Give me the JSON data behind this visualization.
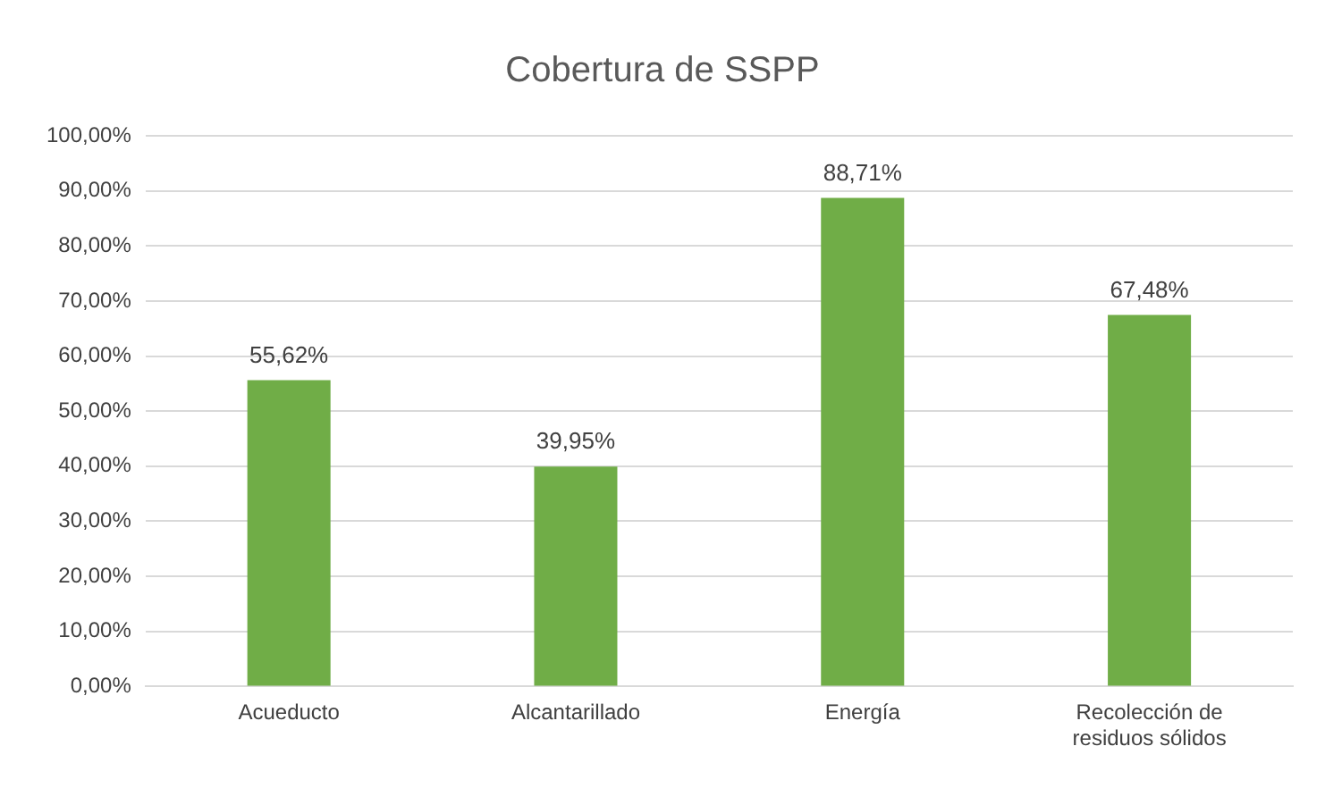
{
  "chart_data": {
    "type": "bar",
    "title": "Cobertura de SSPP",
    "categories": [
      "Acueducto",
      "Alcantarillado",
      "Energía",
      "Recolección de residuos sólidos"
    ],
    "values": [
      55.62,
      39.95,
      88.71,
      67.48
    ],
    "value_labels": [
      "55,62%",
      "39,95%",
      "88,71%",
      "67,48%"
    ],
    "color": "#70ad47",
    "ylim": [
      0,
      100
    ],
    "yticks": [
      {
        "value": 0,
        "label": "0,00%"
      },
      {
        "value": 10,
        "label": "10,00%"
      },
      {
        "value": 20,
        "label": "20,00%"
      },
      {
        "value": 30,
        "label": "30,00%"
      },
      {
        "value": 40,
        "label": "40,00%"
      },
      {
        "value": 50,
        "label": "50,00%"
      },
      {
        "value": 60,
        "label": "60,00%"
      },
      {
        "value": 70,
        "label": "70,00%"
      },
      {
        "value": 80,
        "label": "80,00%"
      },
      {
        "value": 90,
        "label": "90,00%"
      },
      {
        "value": 100,
        "label": "100,00%"
      }
    ],
    "grid": "y"
  }
}
